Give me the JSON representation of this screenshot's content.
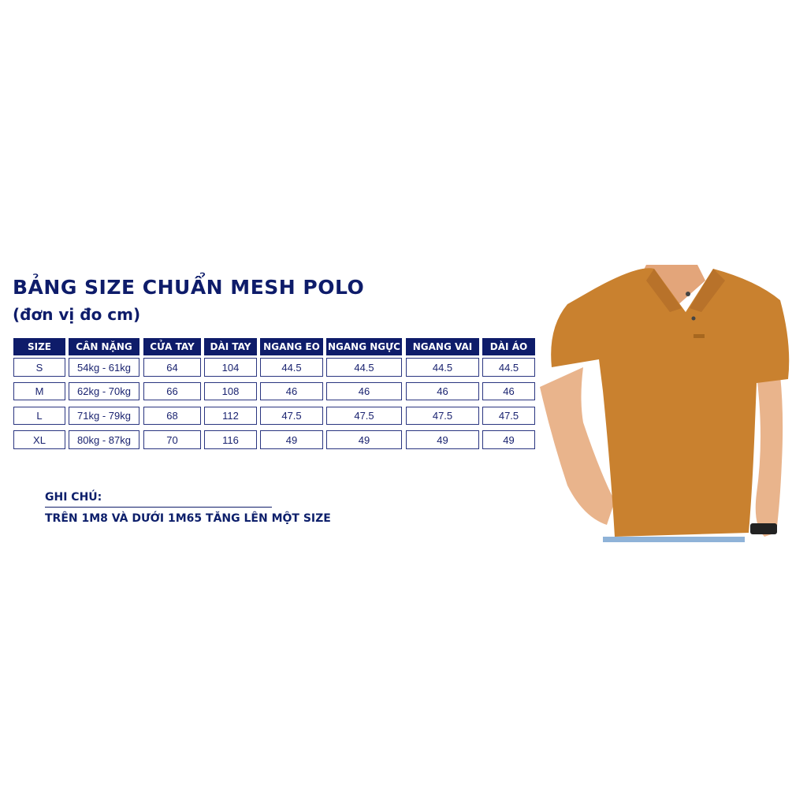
{
  "title": "BẢNG SIZE CHUẨN MESH POLO",
  "subtitle": "(đơn vị đo cm)",
  "table": {
    "headers": [
      "SIZE",
      "CÂN NẶNG",
      "CỬA TAY",
      "DÀI TAY",
      "NGANG EO",
      "NGANG NGỰC",
      "NGANG VAI",
      "DÀI ÁO"
    ],
    "rows": [
      [
        "S",
        "54kg - 61kg",
        "64",
        "104",
        "44.5",
        "44.5",
        "44.5",
        "44.5"
      ],
      [
        "M",
        "62kg - 70kg",
        "66",
        "108",
        "46",
        "46",
        "46",
        "46"
      ],
      [
        "L",
        "71kg - 79kg",
        "68",
        "112",
        "47.5",
        "47.5",
        "47.5",
        "47.5"
      ],
      [
        "XL",
        "80kg - 87kg",
        "70",
        "116",
        "49",
        "49",
        "49",
        "49"
      ]
    ]
  },
  "note": {
    "heading": "GHI CHÚ:",
    "text": "TRÊN 1M8 VÀ DƯỚI 1M65 TĂNG LÊN MỘT SIZE"
  },
  "colors": {
    "navy": "#0e1c6a",
    "shirt": "#c9812f"
  }
}
